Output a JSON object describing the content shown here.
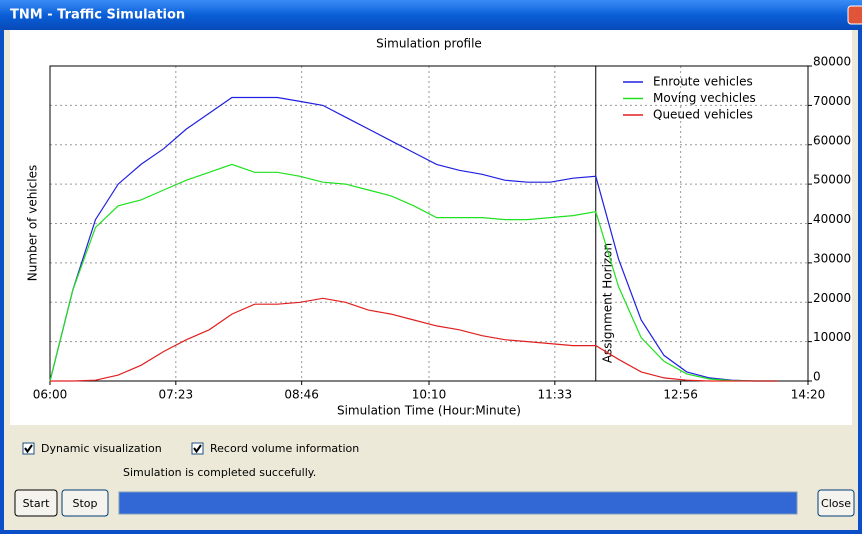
{
  "window": {
    "title": "TNM - Traffic Simulation"
  },
  "chart_data": {
    "type": "line",
    "title": "Simulation profile",
    "x_label": "Simulation Time (Hour:Minute)",
    "y_label": "Number of vehicles",
    "x": [
      360,
      375,
      390,
      405,
      420,
      435,
      450,
      465,
      480,
      495,
      510,
      525,
      540,
      555,
      570,
      585,
      600,
      615,
      630,
      645,
      660,
      675,
      690,
      705,
      720,
      735,
      750,
      765,
      780,
      795,
      810,
      825,
      840
    ],
    "series": [
      {
        "name": "Enroute vehicles",
        "color": "#2020e0",
        "values": [
          0,
          23000,
          41000,
          50000,
          55000,
          59000,
          64000,
          68000,
          72000,
          72000,
          72000,
          71000,
          70000,
          67000,
          64000,
          61000,
          58000,
          55000,
          53500,
          52500,
          51000,
          50500,
          50500,
          51500,
          52000,
          31000,
          15500,
          6500,
          2300,
          800,
          200,
          0,
          0
        ]
      },
      {
        "name": "Moving vechicles",
        "color": "#20e020",
        "values": [
          0,
          23000,
          39000,
          44500,
          46000,
          48500,
          51000,
          53000,
          55000,
          53000,
          53000,
          52000,
          50500,
          50000,
          48500,
          47000,
          44500,
          41500,
          41500,
          41500,
          41000,
          41000,
          41500,
          42000,
          43000,
          24000,
          11000,
          5000,
          1800,
          500,
          100,
          0,
          0
        ]
      },
      {
        "name": "Queued vehicles",
        "color": "#e02020",
        "values": [
          0,
          0,
          200,
          1500,
          4000,
          7500,
          10500,
          13000,
          17000,
          19500,
          19500,
          20000,
          21000,
          20000,
          18000,
          17000,
          15500,
          14000,
          13000,
          11500,
          10500,
          10000,
          9500,
          9000,
          9000,
          5500,
          2300,
          800,
          200,
          0,
          0,
          0,
          0
        ]
      }
    ],
    "xlim": [
      360,
      860
    ],
    "xticks": [
      {
        "value": 360,
        "label": "06:00"
      },
      {
        "value": 443,
        "label": "07:23"
      },
      {
        "value": 526,
        "label": "08:46"
      },
      {
        "value": 610,
        "label": "10:10"
      },
      {
        "value": 693,
        "label": "11:33"
      },
      {
        "value": 776,
        "label": "12:56"
      },
      {
        "value": 860,
        "label": "14:20"
      }
    ],
    "ylim": [
      0,
      80000
    ],
    "yticks": [
      0,
      10000,
      20000,
      30000,
      40000,
      50000,
      60000,
      70000,
      80000
    ],
    "grid": true,
    "legend": "upper right",
    "horizon": {
      "x": 720,
      "label": "Assignment Horizon"
    }
  },
  "controls": {
    "checkboxes": [
      {
        "label": "Dynamic visualization",
        "checked": true
      },
      {
        "label": "Record volume information",
        "checked": true
      }
    ],
    "status": "Simulation is completed succefully.",
    "buttons": [
      "Start",
      "Stop",
      "Close"
    ]
  }
}
